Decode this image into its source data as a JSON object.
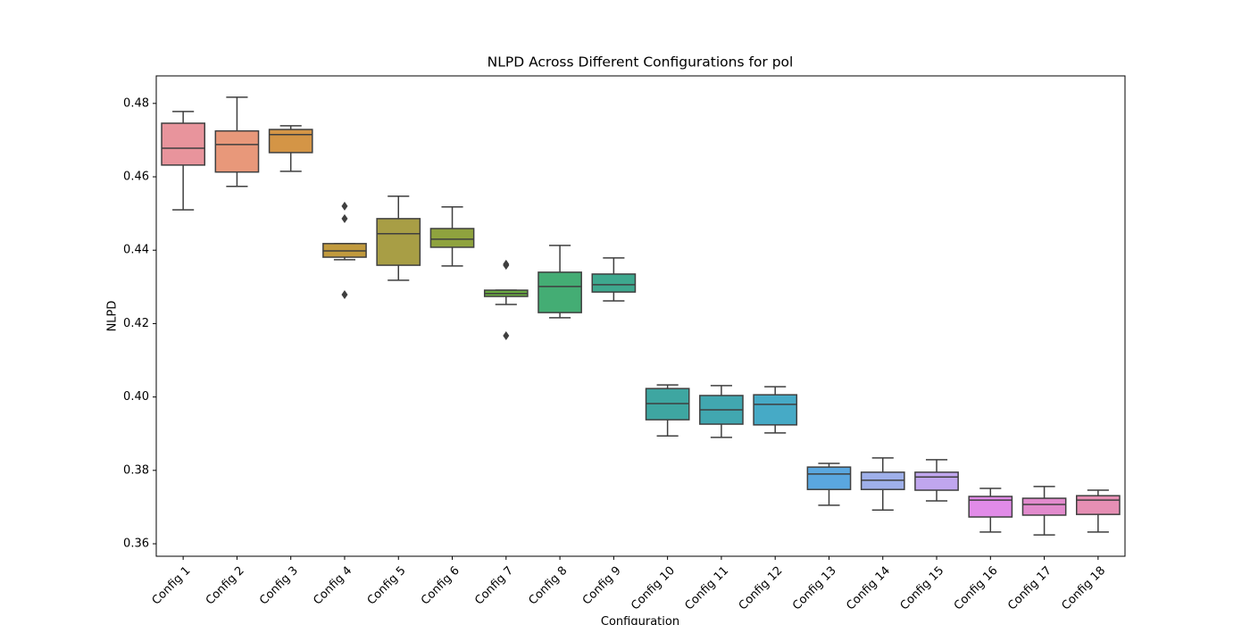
{
  "chart_data": {
    "type": "box",
    "title": "NLPD Across Different Configurations for pol",
    "x_label": "Configuration",
    "y_label": "NLPD",
    "categories": [
      "Config 1",
      "Config 2",
      "Config 3",
      "Config 4",
      "Config 5",
      "Config 6",
      "Config 7",
      "Config 8",
      "Config 9",
      "Config 10",
      "Config 11",
      "Config 12",
      "Config 13",
      "Config 14",
      "Config 15",
      "Config 16",
      "Config 17",
      "Config 18"
    ],
    "boxes": [
      {
        "whisker_low": 0.451,
        "q1": 0.4632,
        "median": 0.4678,
        "q3": 0.4746,
        "whisker_high": 0.4778,
        "color": "#e8949c"
      },
      {
        "whisker_low": 0.4574,
        "q1": 0.4613,
        "median": 0.4688,
        "q3": 0.4725,
        "whisker_high": 0.4817,
        "color": "#e8987a"
      },
      {
        "whisker_low": 0.4615,
        "q1": 0.4666,
        "median": 0.4715,
        "q3": 0.4729,
        "whisker_high": 0.4739,
        "color": "#d49546"
      },
      {
        "whisker_low": 0.4374,
        "q1": 0.4381,
        "median": 0.4398,
        "q3": 0.4418,
        "whisker_high": 0.4418,
        "outliers": [
          0.452,
          0.4486,
          0.4279
        ],
        "color": "#c19a3e"
      },
      {
        "whisker_low": 0.4318,
        "q1": 0.4359,
        "median": 0.4445,
        "q3": 0.4486,
        "whisker_high": 0.4547,
        "color": "#a89e45"
      },
      {
        "whisker_low": 0.4357,
        "q1": 0.4408,
        "median": 0.443,
        "q3": 0.4459,
        "whisker_high": 0.4518,
        "color": "#8fa33e"
      },
      {
        "whisker_low": 0.4252,
        "q1": 0.4274,
        "median": 0.4282,
        "q3": 0.4291,
        "whisker_high": 0.4291,
        "outliers": [
          0.4362,
          0.4359,
          0.4167
        ],
        "color": "#6aab40"
      },
      {
        "whisker_low": 0.4216,
        "q1": 0.423,
        "median": 0.4301,
        "q3": 0.434,
        "whisker_high": 0.4413,
        "color": "#44ad74"
      },
      {
        "whisker_low": 0.4262,
        "q1": 0.4286,
        "median": 0.4306,
        "q3": 0.4335,
        "whisker_high": 0.4379,
        "color": "#3ea88e"
      },
      {
        "whisker_low": 0.3894,
        "q1": 0.3938,
        "median": 0.3982,
        "q3": 0.4023,
        "whisker_high": 0.4033,
        "color": "#3ea6a1"
      },
      {
        "whisker_low": 0.389,
        "q1": 0.3926,
        "median": 0.3965,
        "q3": 0.4004,
        "whisker_high": 0.4031,
        "color": "#41a7b0"
      },
      {
        "whisker_low": 0.3902,
        "q1": 0.3924,
        "median": 0.398,
        "q3": 0.4006,
        "whisker_high": 0.4028,
        "color": "#46aac6"
      },
      {
        "whisker_low": 0.3705,
        "q1": 0.3748,
        "median": 0.379,
        "q3": 0.3809,
        "whisker_high": 0.3819,
        "color": "#5aa7df"
      },
      {
        "whisker_low": 0.3692,
        "q1": 0.3748,
        "median": 0.3773,
        "q3": 0.3795,
        "whisker_high": 0.3834,
        "color": "#9fb0ea"
      },
      {
        "whisker_low": 0.3717,
        "q1": 0.3746,
        "median": 0.3782,
        "q3": 0.3795,
        "whisker_high": 0.3829,
        "color": "#c0a6ee"
      },
      {
        "whisker_low": 0.3632,
        "q1": 0.3673,
        "median": 0.3719,
        "q3": 0.3729,
        "whisker_high": 0.3751,
        "color": "#e18be8"
      },
      {
        "whisker_low": 0.3624,
        "q1": 0.3678,
        "median": 0.3707,
        "q3": 0.3724,
        "whisker_high": 0.3756,
        "color": "#e28bcd"
      },
      {
        "whisker_low": 0.3632,
        "q1": 0.368,
        "median": 0.3719,
        "q3": 0.3731,
        "whisker_high": 0.3746,
        "color": "#e68fb4"
      }
    ],
    "ylim": [
      0.3566,
      0.4875
    ],
    "yticks": [
      0.36,
      0.38,
      {
        "value": 0.4,
        "label": "0.40"
      },
      0.42,
      0.44,
      0.46,
      0.48
    ]
  }
}
